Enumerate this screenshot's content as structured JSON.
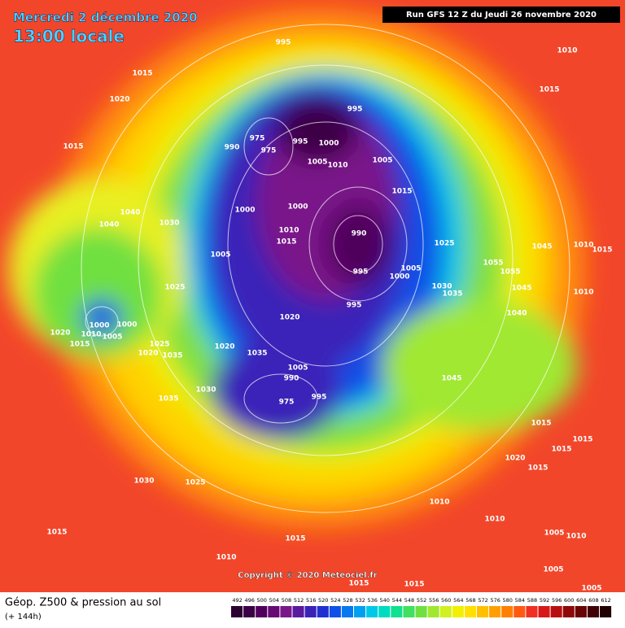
{
  "header": {
    "date": "Mercredi 2 décembre 2020",
    "time": "13:00 locale",
    "run": "Run GFS 12 Z du Jeudi 26 novembre 2020"
  },
  "footer": {
    "title": "Géop. Z500 & pression au sol",
    "lead": "(+ 144h)",
    "copyright": "Copyright © 2020 Meteociel.fr"
  },
  "legend": {
    "values": [
      492,
      496,
      500,
      504,
      508,
      512,
      516,
      520,
      524,
      528,
      532,
      536,
      540,
      544,
      548,
      552,
      556,
      560,
      564,
      568,
      572,
      576,
      580,
      584,
      588,
      592,
      596,
      600,
      604,
      608,
      612
    ],
    "colors": [
      "#2a0030",
      "#3c0046",
      "#50005c",
      "#660a74",
      "#7a188a",
      "#5a1aa0",
      "#3a22b8",
      "#2030d0",
      "#1050e8",
      "#0878f0",
      "#00a0f0",
      "#00c8e8",
      "#00dcc0",
      "#10e090",
      "#40e060",
      "#70e040",
      "#a0e830",
      "#d0f020",
      "#f0f000",
      "#ffe000",
      "#ffc000",
      "#ffa000",
      "#ff8000",
      "#ff5a10",
      "#f03020",
      "#d81818",
      "#b81010",
      "#900808",
      "#680404",
      "#400202",
      "#200000"
    ]
  },
  "isobars": [
    995,
    1010,
    1015,
    1015,
    1020,
    995,
    1015,
    975,
    990,
    975,
    995,
    1000,
    1005,
    1010,
    1005,
    1015,
    1000,
    1000,
    1040,
    1030,
    1040,
    1010,
    1015,
    990,
    1025,
    1045,
    1010,
    1015,
    1005,
    995,
    1005,
    1000,
    1055,
    1055,
    1030,
    1035,
    1045,
    1025,
    1010,
    995,
    1040,
    1020,
    1000,
    1000,
    1005,
    1010,
    1020,
    1015,
    1025,
    1020,
    1035,
    1020,
    1035,
    1005,
    990,
    975,
    995,
    1045,
    1030,
    1035,
    1015,
    1015,
    1015,
    1020,
    1015,
    1030,
    1025,
    1010,
    1010,
    1015,
    1015,
    1005,
    1010,
    1010,
    1005,
    1015,
    1015,
    1005
  ]
}
